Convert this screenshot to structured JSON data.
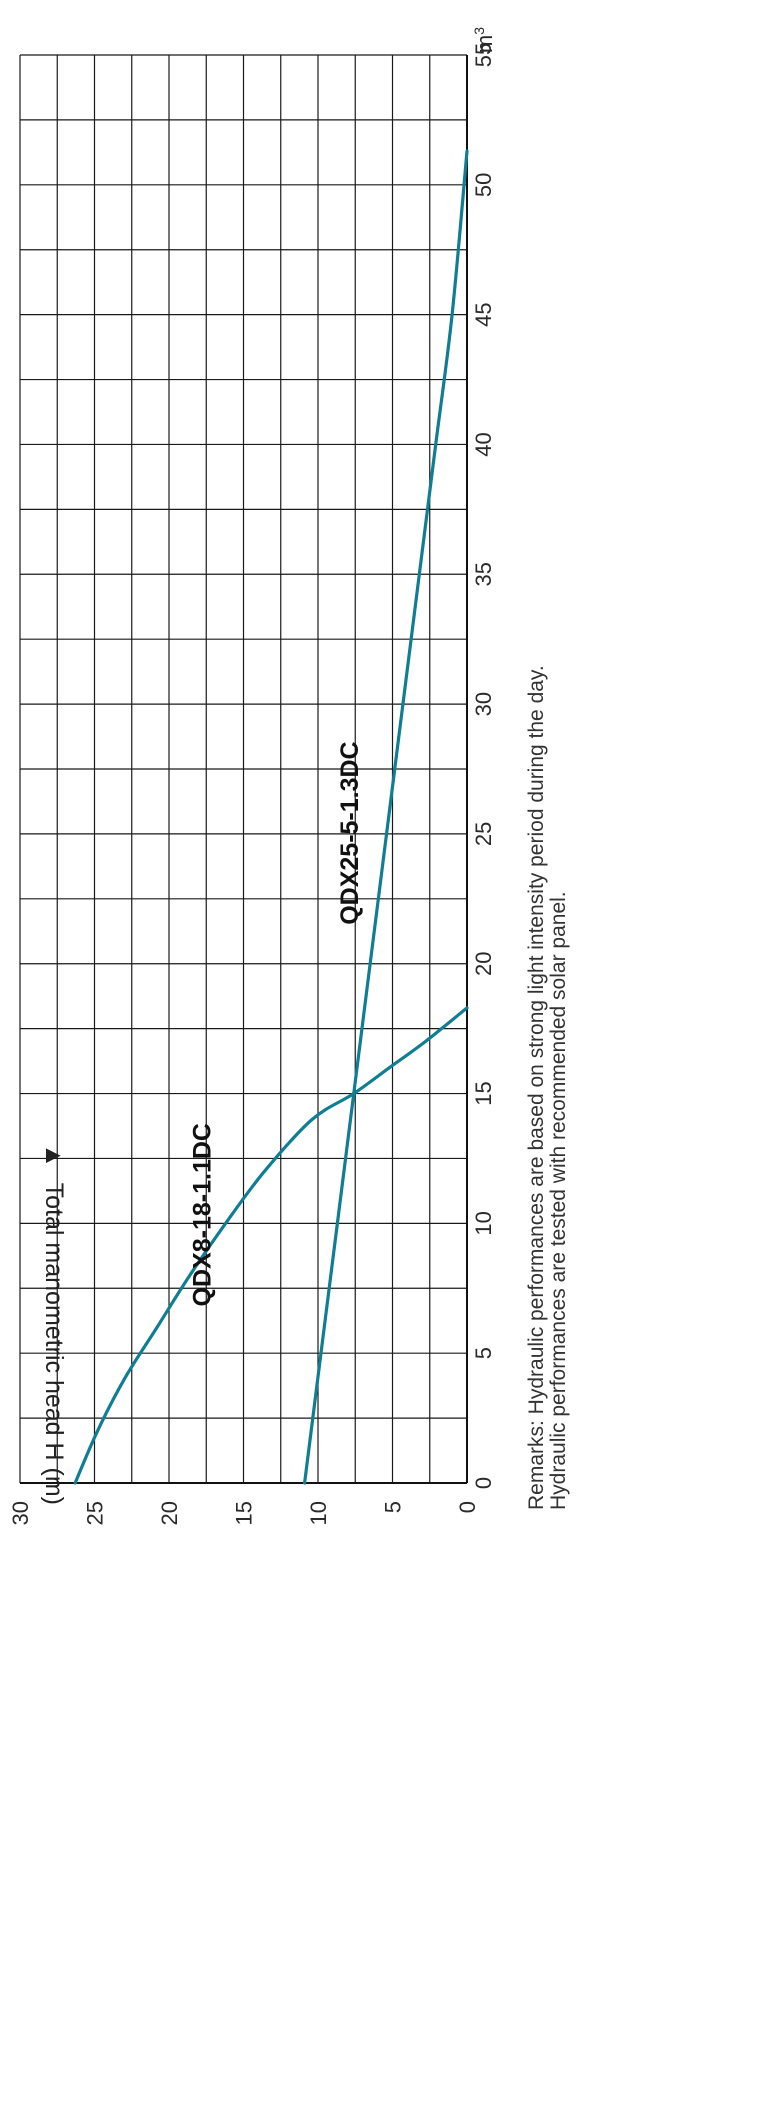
{
  "chart_data": {
    "type": "line",
    "orientation": "rotated-90-clockwise",
    "x_unit_label": "m",
    "x_unit_superscript": "3",
    "x_ticks": [
      0,
      5,
      10,
      15,
      20,
      25,
      30,
      35,
      40,
      45,
      50,
      55
    ],
    "y_ticks": [
      0,
      5,
      10,
      15,
      20,
      25,
      30
    ],
    "xlim": [
      0,
      55
    ],
    "ylim": [
      0,
      30
    ],
    "ylabel": "Total manometric head H (m)",
    "ylabel_arrow": "▲",
    "grid": true,
    "series": [
      {
        "name": "QDX8-18-1.1DC",
        "color": "#0f7e93",
        "x": [
          0,
          2,
          4,
          6,
          8,
          10,
          12,
          14,
          15,
          16,
          17,
          18.3
        ],
        "y": [
          26.3,
          24.8,
          23.0,
          20.8,
          18.6,
          16.2,
          13.6,
          10.4,
          7.6,
          5.2,
          2.8,
          0
        ]
      },
      {
        "name": "QDX25-5-1.3DC",
        "color": "#0f7e93",
        "x": [
          0,
          10,
          15,
          20,
          25,
          30,
          35,
          40,
          45,
          51.3
        ],
        "y": [
          10.9,
          8.7,
          7.6,
          6.5,
          5.4,
          4.3,
          3.2,
          2.1,
          1.0,
          0
        ]
      }
    ],
    "annotations": [
      {
        "text": "QDX8-18-1.1DC",
        "x": 6.8,
        "y": 17.2
      },
      {
        "text": "QDX25-5-1.3DC",
        "x": 21.5,
        "y": 7.3
      }
    ],
    "remarks": [
      "Remarks: Hydraulic performances are based on strong light intensity period during the day.",
      "Hydraulic performances are tested with recommended solar panel."
    ]
  }
}
